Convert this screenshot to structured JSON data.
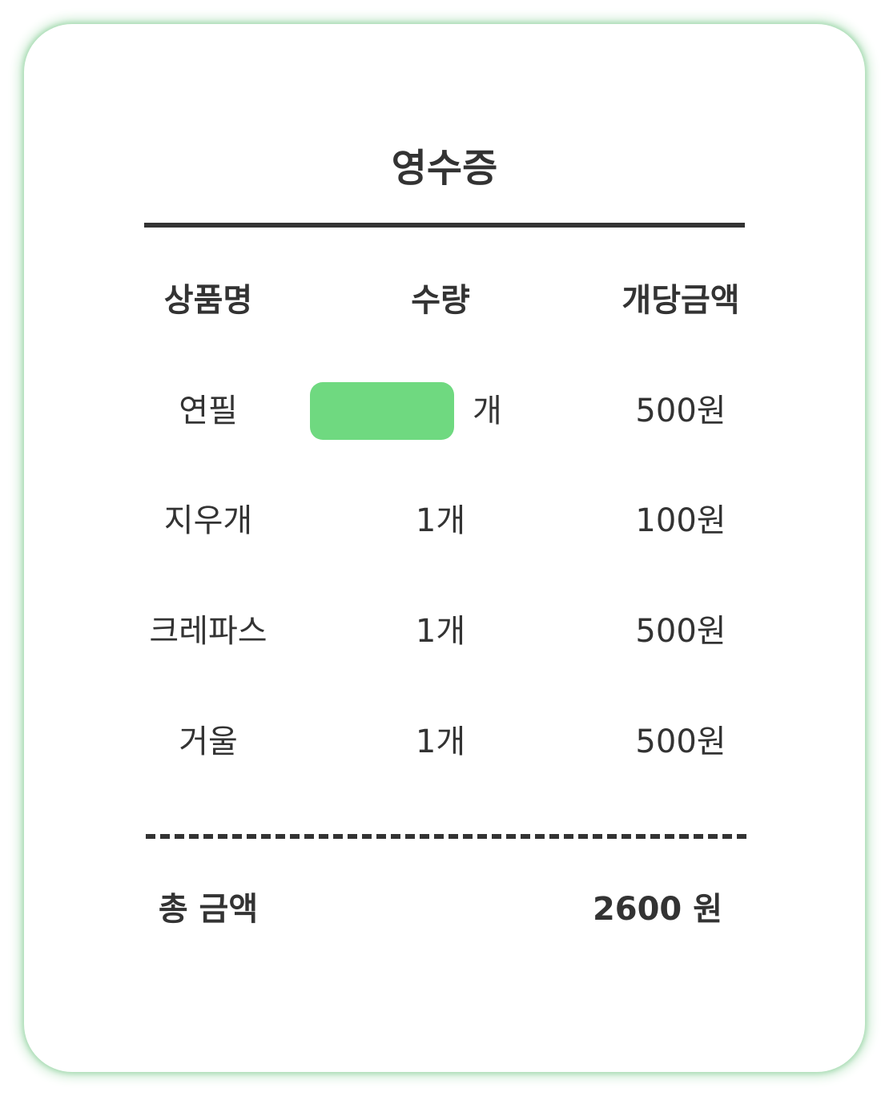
{
  "receipt": {
    "title": "영수증",
    "headers": {
      "name": "상품명",
      "quantity": "수량",
      "unit_price": "개당금액"
    },
    "items": [
      {
        "name": "연필",
        "quantity_value": "",
        "quantity_unit": "개",
        "unit_price": "500원"
      },
      {
        "name": "지우개",
        "quantity": "1개",
        "unit_price": "100원"
      },
      {
        "name": "크레파스",
        "quantity": "1개",
        "unit_price": "500원"
      },
      {
        "name": "거울",
        "quantity": "1개",
        "unit_price": "500원"
      }
    ],
    "total_label": "총 금액",
    "total_value": "2600 원"
  },
  "colors": {
    "accent": "#6fd980",
    "text": "#333333",
    "border_glow": "#a9dcb4"
  }
}
